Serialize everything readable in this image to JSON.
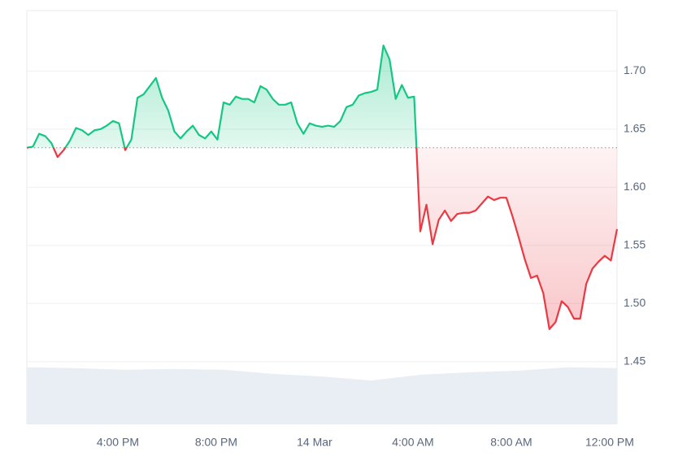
{
  "chart_data": {
    "type": "baseline-line",
    "x": [
      12.3,
      12.55,
      12.8,
      13.05,
      13.3,
      13.55,
      13.8,
      14.05,
      14.3,
      14.55,
      14.8,
      15.05,
      15.3,
      15.55,
      15.8,
      16.05,
      16.3,
      16.55,
      16.8,
      17.05,
      17.3,
      17.55,
      17.8,
      18.05,
      18.3,
      18.55,
      18.8,
      19.05,
      19.3,
      19.55,
      19.8,
      20.05,
      20.3,
      20.55,
      20.8,
      21.05,
      21.3,
      21.55,
      21.8,
      22.05,
      22.3,
      22.55,
      22.8,
      23.05,
      23.3,
      23.55,
      23.8,
      24.05,
      24.3,
      24.55,
      24.8,
      25.05,
      25.3,
      25.55,
      25.8,
      26.05,
      26.3,
      26.55,
      26.8,
      27.05,
      27.3,
      27.55,
      27.8,
      28.05,
      28.3,
      28.55,
      28.8,
      29.05,
      29.3,
      29.55,
      29.8,
      30.05,
      30.3,
      30.55,
      30.8,
      31.05,
      31.3,
      31.55,
      31.8,
      32.05,
      32.3,
      32.55,
      32.8,
      33.05,
      33.3,
      33.55,
      33.8,
      34.05,
      34.3,
      34.55,
      34.8,
      35.05,
      35.3,
      35.55,
      35.8,
      36.05,
      36.3
    ],
    "values": [
      1.634,
      1.635,
      1.646,
      1.644,
      1.638,
      1.626,
      1.632,
      1.64,
      1.651,
      1.649,
      1.645,
      1.649,
      1.65,
      1.653,
      1.657,
      1.655,
      1.632,
      1.641,
      1.677,
      1.68,
      1.687,
      1.694,
      1.677,
      1.666,
      1.648,
      1.642,
      1.648,
      1.653,
      1.645,
      1.642,
      1.648,
      1.641,
      1.673,
      1.671,
      1.678,
      1.676,
      1.676,
      1.673,
      1.687,
      1.684,
      1.676,
      1.671,
      1.671,
      1.673,
      1.655,
      1.646,
      1.655,
      1.653,
      1.652,
      1.653,
      1.652,
      1.657,
      1.669,
      1.671,
      1.679,
      1.681,
      1.682,
      1.684,
      1.722,
      1.71,
      1.676,
      1.688,
      1.677,
      1.678,
      1.562,
      1.585,
      1.551,
      1.572,
      1.58,
      1.571,
      1.577,
      1.578,
      1.578,
      1.58,
      1.586,
      1.592,
      1.589,
      1.591,
      1.591,
      1.575,
      1.557,
      1.538,
      1.522,
      1.524,
      1.509,
      1.478,
      1.484,
      1.502,
      1.497,
      1.487,
      1.487,
      1.517,
      1.53,
      1.536,
      1.541,
      1.537,
      1.564
    ],
    "baseline": 1.634,
    "up_color": "#16c784",
    "down_color": "#ea3943",
    "volume": {
      "x": [
        12.3,
        14.3,
        16.3,
        18.3,
        20.3,
        22.3,
        24.3,
        26.3,
        28.3,
        30.3,
        32.3,
        34.3,
        36.3
      ],
      "values": [
        13.8,
        13.6,
        13.2,
        13.4,
        13.2,
        12.2,
        11.6,
        10.6,
        12.0,
        12.6,
        13.0,
        13.8,
        13.6
      ],
      "color": "#e9eef4",
      "axis": "y2"
    },
    "xlim": [
      12.3,
      36.3
    ],
    "ylim": [
      1.396,
      1.752
    ],
    "y2lim": [
      0,
      100
    ],
    "xticks": [
      {
        "value": 16,
        "label": "4:00 PM"
      },
      {
        "value": 20,
        "label": "8:00 PM"
      },
      {
        "value": 24,
        "label": "14 Mar"
      },
      {
        "value": 28,
        "label": "4:00 AM"
      },
      {
        "value": 32,
        "label": "8:00 AM"
      },
      {
        "value": 36,
        "label": "12:00 PM"
      }
    ],
    "yticks": [
      1.45,
      {
        "value": 1.5,
        "label": "1.50"
      },
      1.55,
      {
        "value": 1.6,
        "label": "1.60"
      },
      1.65,
      {
        "value": 1.7,
        "label": "1.70"
      }
    ],
    "grid": true
  }
}
